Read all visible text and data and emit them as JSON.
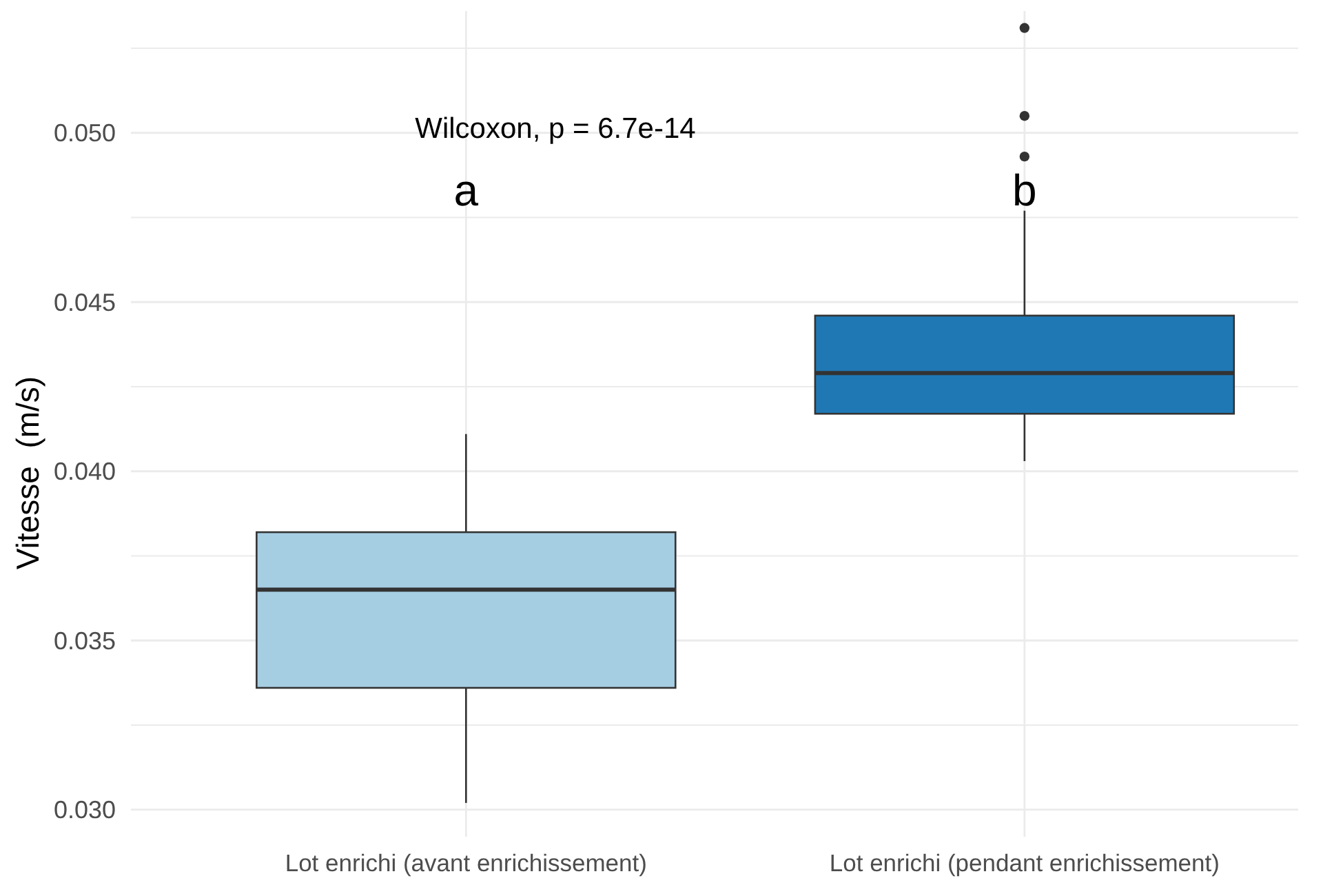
{
  "chart_data": {
    "type": "box",
    "ylabel": "Vitesse  (m/s)",
    "categories": [
      "Lot enrichi (avant enrichissement)",
      "Lot enrichi (pendant enrichissement)"
    ],
    "boxes": [
      {
        "low": 0.0302,
        "q1": 0.0336,
        "median": 0.0365,
        "q3": 0.0382,
        "high": 0.0411
      },
      {
        "low": 0.0403,
        "q1": 0.0417,
        "median": 0.0429,
        "q3": 0.0446,
        "high": 0.0477,
        "outliers": [
          0.0493,
          0.0505,
          0.0531
        ]
      }
    ],
    "colors": [
      "#a6cee3",
      "#1f78b4"
    ],
    "ylim": [
      0.0292,
      0.0536
    ],
    "yticks": [
      {
        "value": 0.03,
        "label": "0.030"
      },
      {
        "value": 0.0325,
        "label": null
      },
      {
        "value": 0.035,
        "label": "0.035"
      },
      {
        "value": 0.0375,
        "label": null
      },
      {
        "value": 0.04,
        "label": "0.040"
      },
      {
        "value": 0.0425,
        "label": null
      },
      {
        "value": 0.045,
        "label": "0.045"
      },
      {
        "value": 0.0475,
        "label": null
      },
      {
        "value": 0.05,
        "label": "0.050"
      },
      {
        "value": 0.0525,
        "label": null
      }
    ],
    "grid": true,
    "annotations": [
      "Wilcoxon, p = 6.7e-14",
      "a",
      "b"
    ]
  }
}
